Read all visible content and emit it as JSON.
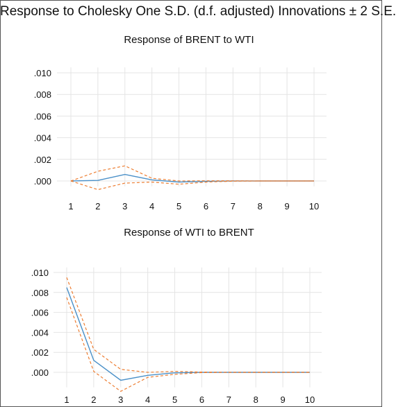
{
  "title": "Response to Cholesky One S.D. (d.f. adjusted) Innovations ± 2 S.E.",
  "colors": {
    "response": "#4a90c8",
    "band": "#ed7d31",
    "grid": "#e4e4e4"
  },
  "chart_data": [
    {
      "type": "line",
      "title": "Response of BRENT to WTI",
      "x": [
        1,
        2,
        3,
        4,
        5,
        6,
        7,
        8,
        9,
        10
      ],
      "ylim": [
        -0.0005,
        0.0105
      ],
      "yticks": [
        ".000",
        ".002",
        ".004",
        ".006",
        ".008",
        ".010"
      ],
      "ytick_values": [
        0,
        0.002,
        0.004,
        0.006,
        0.008,
        0.01
      ],
      "grid": true,
      "series": [
        {
          "role": "response",
          "values": [
            0.0,
            5e-05,
            0.0006,
            0.0001,
            -0.0001,
            -3e-05,
            0.0,
            0.0,
            0.0,
            0.0
          ]
        },
        {
          "role": "upper",
          "values": [
            0.0,
            0.0009,
            0.0014,
            0.00025,
            0.0,
            2e-05,
            1e-05,
            0.0,
            0.0,
            0.0
          ]
        },
        {
          "role": "lower",
          "values": [
            0.0,
            -0.0008,
            -0.0002,
            -0.0001,
            -0.0003,
            -0.0001,
            -2e-05,
            0.0,
            0.0,
            0.0
          ]
        }
      ]
    },
    {
      "type": "line",
      "title": "Response of WTI to BRENT",
      "x": [
        1,
        2,
        3,
        4,
        5,
        6,
        7,
        8,
        9,
        10
      ],
      "ylim": [
        -0.0015,
        0.0105
      ],
      "yticks": [
        ".000",
        ".002",
        ".004",
        ".006",
        ".008",
        ".010"
      ],
      "ytick_values": [
        0,
        0.002,
        0.004,
        0.006,
        0.008,
        0.01
      ],
      "grid": true,
      "series": [
        {
          "role": "response",
          "values": [
            0.0085,
            0.0012,
            -0.0008,
            -0.0003,
            -5e-05,
            0.0,
            0.0,
            0.0,
            0.0,
            0.0
          ]
        },
        {
          "role": "upper",
          "values": [
            0.0095,
            0.0023,
            0.0003,
            0.0,
            0.0001,
            3e-05,
            0.0,
            0.0,
            0.0,
            0.0
          ]
        },
        {
          "role": "lower",
          "values": [
            0.0075,
            0.0001,
            -0.0019,
            -0.0005,
            -0.0002,
            -3e-05,
            0.0,
            0.0,
            0.0,
            0.0
          ]
        }
      ]
    }
  ]
}
